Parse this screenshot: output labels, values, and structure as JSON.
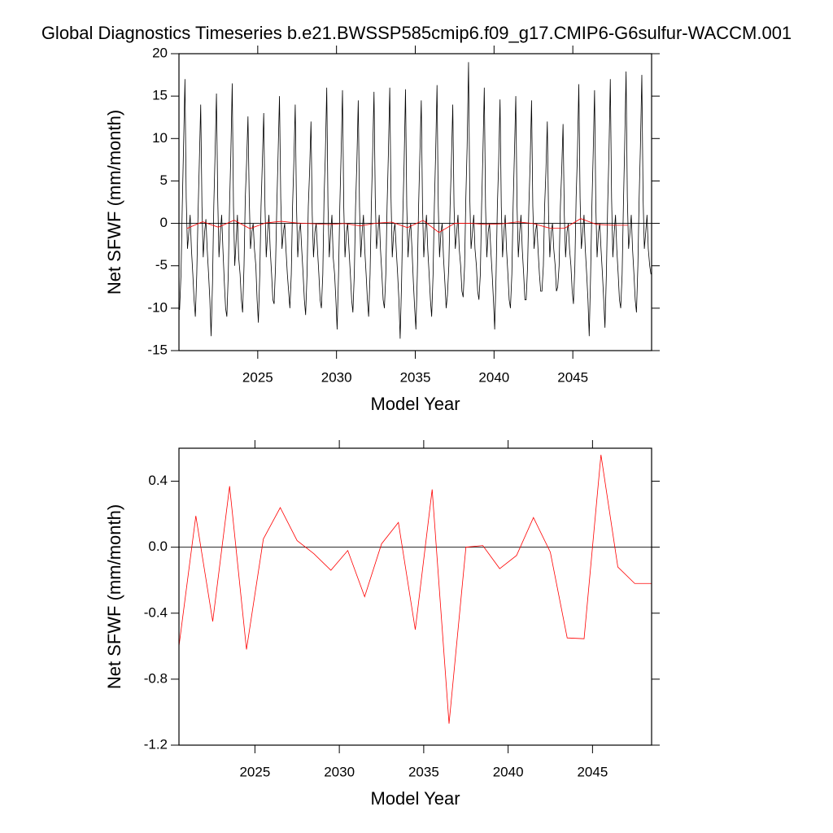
{
  "chart_data": [
    {
      "type": "line",
      "title": "Global Diagnostics Timeseries b.e21.BWSSP585cmip6.f09_g17.CMIP6-G6sulfur-WACCM.001",
      "xlabel": "Model Year",
      "ylabel": "Net SFWF (mm/month)",
      "xlim": [
        2020,
        2050
      ],
      "xticks": [
        2025,
        2030,
        2035,
        2040,
        2045
      ],
      "ylim": [
        -15,
        20
      ],
      "yticks": [
        -15,
        -10,
        -5,
        0,
        5,
        10,
        15,
        20
      ],
      "series": [
        {
          "color": "#000000",
          "x": [
            2020.04,
            2020.13,
            2020.21,
            2020.29,
            2020.38,
            2020.46,
            2020.54,
            2020.63,
            2020.71,
            2020.79,
            2020.88,
            2020.96,
            2021.04,
            2021.13,
            2021.21,
            2021.29,
            2021.38,
            2021.46,
            2021.54,
            2021.63,
            2021.71,
            2021.79,
            2021.88,
            2021.96,
            2022.04,
            2022.13,
            2022.21,
            2022.29,
            2022.38,
            2022.46,
            2022.54,
            2022.63,
            2022.71,
            2022.79,
            2022.88,
            2022.96,
            2023.04,
            2023.13,
            2023.21,
            2023.29,
            2023.38,
            2023.46,
            2023.54,
            2023.63,
            2023.71,
            2023.79,
            2023.88,
            2023.96,
            2024.04,
            2024.13,
            2024.21,
            2024.29,
            2024.38,
            2024.46,
            2024.54,
            2024.63,
            2024.71,
            2024.79,
            2024.88,
            2024.96,
            2025.04,
            2025.13,
            2025.21,
            2025.29,
            2025.38,
            2025.46,
            2025.54,
            2025.63,
            2025.71,
            2025.79,
            2025.88,
            2025.96,
            2026.04,
            2026.13,
            2026.21,
            2026.29,
            2026.38,
            2026.46,
            2026.54,
            2026.63,
            2026.71,
            2026.79,
            2026.88,
            2026.96,
            2027.04,
            2027.13,
            2027.21,
            2027.29,
            2027.38,
            2027.46,
            2027.54,
            2027.63,
            2027.71,
            2027.79,
            2027.88,
            2027.96,
            2028.04,
            2028.13,
            2028.21,
            2028.29,
            2028.38,
            2028.46,
            2028.54,
            2028.63,
            2028.71,
            2028.79,
            2028.88,
            2028.96,
            2029.04,
            2029.13,
            2029.21,
            2029.29,
            2029.38,
            2029.46,
            2029.54,
            2029.63,
            2029.71,
            2029.79,
            2029.88,
            2029.96,
            2030.04,
            2030.13,
            2030.21,
            2030.29,
            2030.38,
            2030.46,
            2030.54,
            2030.63,
            2030.71,
            2030.79,
            2030.88,
            2030.96,
            2031.04,
            2031.13,
            2031.21,
            2031.29,
            2031.38,
            2031.46,
            2031.54,
            2031.63,
            2031.71,
            2031.79,
            2031.88,
            2031.96,
            2032.04,
            2032.13,
            2032.21,
            2032.29,
            2032.38,
            2032.46,
            2032.54,
            2032.63,
            2032.71,
            2032.79,
            2032.88,
            2032.96,
            2033.04,
            2033.13,
            2033.21,
            2033.29,
            2033.38,
            2033.46,
            2033.54,
            2033.63,
            2033.71,
            2033.79,
            2033.88,
            2033.96,
            2034.04,
            2034.13,
            2034.21,
            2034.29,
            2034.38,
            2034.46,
            2034.54,
            2034.63,
            2034.71,
            2034.79,
            2034.88,
            2034.96,
            2035.04,
            2035.13,
            2035.21,
            2035.29,
            2035.38,
            2035.46,
            2035.54,
            2035.63,
            2035.71,
            2035.79,
            2035.88,
            2035.96,
            2036.04,
            2036.13,
            2036.21,
            2036.29,
            2036.38,
            2036.46,
            2036.54,
            2036.63,
            2036.71,
            2036.79,
            2036.88,
            2036.96,
            2037.04,
            2037.13,
            2037.21,
            2037.29,
            2037.38,
            2037.46,
            2037.54,
            2037.63,
            2037.71,
            2037.79,
            2037.88,
            2037.96,
            2038.04,
            2038.13,
            2038.21,
            2038.29,
            2038.38,
            2038.46,
            2038.54,
            2038.63,
            2038.71,
            2038.79,
            2038.88,
            2038.96,
            2039.04,
            2039.13,
            2039.21,
            2039.29,
            2039.38,
            2039.46,
            2039.54,
            2039.63,
            2039.71,
            2039.79,
            2039.88,
            2039.96,
            2040.04,
            2040.13,
            2040.21,
            2040.29,
            2040.38,
            2040.46,
            2040.54,
            2040.63,
            2040.71,
            2040.79,
            2040.88,
            2040.96,
            2041.04,
            2041.13,
            2041.21,
            2041.29,
            2041.38,
            2041.46,
            2041.54,
            2041.63,
            2041.71,
            2041.79,
            2041.88,
            2041.96,
            2042.04,
            2042.13,
            2042.21,
            2042.29,
            2042.38,
            2042.46,
            2042.54,
            2042.63,
            2042.71,
            2042.79,
            2042.88,
            2042.96,
            2043.04,
            2043.13,
            2043.21,
            2043.29,
            2043.38,
            2043.46,
            2043.54,
            2043.63,
            2043.71,
            2043.79,
            2043.88,
            2043.96,
            2044.04,
            2044.13,
            2044.21,
            2044.29,
            2044.38,
            2044.46,
            2044.54,
            2044.63,
            2044.71,
            2044.79,
            2044.88,
            2044.96,
            2045.04,
            2045.13,
            2045.21,
            2045.29,
            2045.38,
            2045.46,
            2045.54,
            2045.63,
            2045.71,
            2045.79,
            2045.88,
            2045.96,
            2046.04,
            2046.13,
            2046.21,
            2046.29,
            2046.38,
            2046.46,
            2046.54,
            2046.63,
            2046.71,
            2046.79,
            2046.88,
            2046.96,
            2047.04,
            2047.13,
            2047.21,
            2047.29,
            2047.38,
            2047.46,
            2047.54,
            2047.63,
            2047.71,
            2047.79,
            2047.88,
            2047.96,
            2048.04,
            2048.13,
            2048.21,
            2048.29,
            2048.38,
            2048.46,
            2048.54,
            2048.63,
            2048.71,
            2048.79,
            2048.88,
            2048.96,
            2049.04,
            2049.13,
            2049.21,
            2049.29,
            2049.38,
            2049.46,
            2049.54,
            2049.63,
            2049.71,
            2049.79,
            2049.88,
            2049.96
          ],
          "values": [
            -10.2,
            -6,
            2,
            9,
            17,
            3,
            -3,
            -1,
            1,
            -3,
            -6,
            -9,
            -11,
            -6,
            1,
            7,
            14,
            2,
            -4,
            -1,
            0.5,
            -3,
            -6,
            -9,
            -13.3,
            -7,
            2,
            8,
            15.3,
            3,
            -4,
            -1,
            1,
            -3,
            -7,
            -10,
            -11,
            -6,
            2,
            8,
            16.5,
            2,
            -5,
            -2,
            1,
            -4,
            -6,
            -9,
            -10.5,
            -5,
            3,
            7,
            12.6,
            3,
            -3,
            -1,
            0,
            -3,
            -5,
            -9,
            -11.7,
            -6,
            2,
            7,
            13,
            2,
            -4,
            -1,
            1,
            -3,
            -6,
            -9,
            -9.5,
            -5,
            2,
            8,
            15,
            3,
            -3,
            -1,
            0,
            -3,
            -6,
            -8,
            -10,
            -6,
            2,
            7,
            14,
            2,
            -4,
            -1,
            0,
            -3,
            -6,
            -9,
            -10.8,
            -6,
            2,
            6,
            12,
            1,
            -4,
            -1,
            0,
            -3,
            -6,
            -9,
            -10,
            -6,
            3,
            8,
            16,
            2,
            -4,
            -1,
            1,
            -4,
            -6,
            -9,
            -12.5,
            -6,
            2,
            8,
            15.7,
            2,
            -4,
            -1,
            0,
            -3,
            -6,
            -9,
            -10.5,
            -6,
            2,
            7,
            14.5,
            2,
            -4,
            -1,
            1,
            -3,
            -6,
            -9,
            -11,
            -6,
            2,
            8,
            15.5,
            3,
            -3,
            -1,
            1,
            -3,
            -6,
            -9,
            -10,
            -6,
            2,
            8,
            16,
            3,
            -4,
            -1,
            0,
            -3,
            -6,
            -9,
            -13.6,
            -7,
            1,
            7,
            15.8,
            2,
            -4,
            -1,
            0,
            -3,
            -7,
            -10,
            -12.5,
            -6,
            2,
            8,
            14.5,
            2,
            -4,
            -1,
            1,
            -3,
            -6,
            -9,
            -11,
            -6,
            2,
            8,
            16.3,
            2,
            -4,
            -1,
            0,
            -4,
            -7,
            -10,
            -8.5,
            -5,
            2,
            7,
            14,
            2,
            -3,
            -1,
            1,
            -3,
            -5,
            -8,
            -8.7,
            -5,
            3,
            9,
            19,
            3,
            -3,
            -1,
            1,
            -3,
            -5,
            -8,
            -9,
            -6,
            2,
            8,
            16,
            2,
            -4,
            -1,
            0,
            -3,
            -6,
            -9,
            -12.5,
            -6,
            2,
            7,
            14.6,
            2,
            -4,
            -1,
            1,
            -3,
            -6,
            -9,
            -10,
            -6,
            2,
            8,
            15,
            2,
            -4,
            -1,
            1,
            -3,
            -6,
            -9,
            -9,
            -5,
            2,
            7,
            14.5,
            2,
            -3,
            -1,
            0,
            -3,
            -6,
            -8,
            -8,
            -5,
            2,
            6,
            12,
            1,
            -4,
            -1,
            0,
            -3,
            -5,
            -8,
            -7.5,
            -5,
            2,
            6,
            11.7,
            1,
            -4,
            -1,
            0,
            -3,
            -5,
            -8,
            -9.5,
            -5,
            3,
            8,
            16.4,
            3,
            -3,
            -1,
            1,
            -3,
            -6,
            -9,
            -13.3,
            -6,
            2,
            8,
            15.7,
            2,
            -4,
            -1,
            0,
            -3,
            -6,
            -9,
            -12.3,
            -6,
            2,
            8,
            17,
            3,
            -4,
            -1,
            1,
            -3,
            -6,
            -9,
            -10,
            -6,
            2,
            9,
            17.9,
            3,
            -3,
            -1,
            1,
            -3,
            -6,
            -9,
            -10.5,
            -5,
            3,
            9,
            17.5,
            3,
            -3,
            -1,
            1,
            -3,
            -5,
            -6
          ]
        },
        {
          "color": "#ff0000",
          "x": [
            2020.5,
            2021.5,
            2022.5,
            2023.5,
            2024.5,
            2025.5,
            2026.5,
            2027.5,
            2028.5,
            2029.5,
            2030.5,
            2031.5,
            2032.5,
            2033.5,
            2034.5,
            2035.5,
            2036.5,
            2037.5,
            2038.5,
            2039.5,
            2040.5,
            2041.5,
            2042.5,
            2043.5,
            2044.5,
            2045.5,
            2046.5,
            2047.5,
            2048.5
          ],
          "values": [
            -0.6,
            0.19,
            -0.45,
            0.37,
            -0.62,
            0.05,
            0.24,
            0.04,
            -0.04,
            -0.14,
            -0.02,
            -0.3,
            0.02,
            0.15,
            -0.5,
            0.35,
            -1.07,
            0.0,
            0.01,
            -0.13,
            -0.05,
            0.18,
            -0.03,
            -0.55,
            -0.555,
            0.56,
            -0.12,
            -0.22,
            -0.22
          ]
        }
      ]
    },
    {
      "type": "line",
      "xlabel": "Model Year",
      "ylabel": "Net SFWF (mm/month)",
      "xlim": [
        2020.5,
        2048.5
      ],
      "xticks": [
        2025,
        2030,
        2035,
        2040,
        2045
      ],
      "ylim": [
        -1.2,
        0.6
      ],
      "yticks": [
        -1.2,
        -0.8,
        -0.4,
        {
          "value": 0,
          "label": "0.0"
        },
        0.4
      ],
      "series": [
        {
          "color": "#ff0000",
          "x": [
            2020.5,
            2021.5,
            2022.5,
            2023.5,
            2024.5,
            2025.5,
            2026.5,
            2027.5,
            2028.5,
            2029.5,
            2030.5,
            2031.5,
            2032.5,
            2033.5,
            2034.5,
            2035.5,
            2036.5,
            2037.5,
            2038.5,
            2039.5,
            2040.5,
            2041.5,
            2042.5,
            2043.5,
            2044.5,
            2045.5,
            2046.5,
            2047.5,
            2048.5
          ],
          "values": [
            -0.6,
            0.19,
            -0.45,
            0.37,
            -0.62,
            0.05,
            0.24,
            0.04,
            -0.04,
            -0.14,
            -0.02,
            -0.3,
            0.02,
            0.15,
            -0.5,
            0.35,
            -1.07,
            0.0,
            0.01,
            -0.13,
            -0.05,
            0.18,
            -0.03,
            -0.55,
            -0.555,
            0.56,
            -0.12,
            -0.22,
            -0.22
          ]
        }
      ]
    }
  ]
}
